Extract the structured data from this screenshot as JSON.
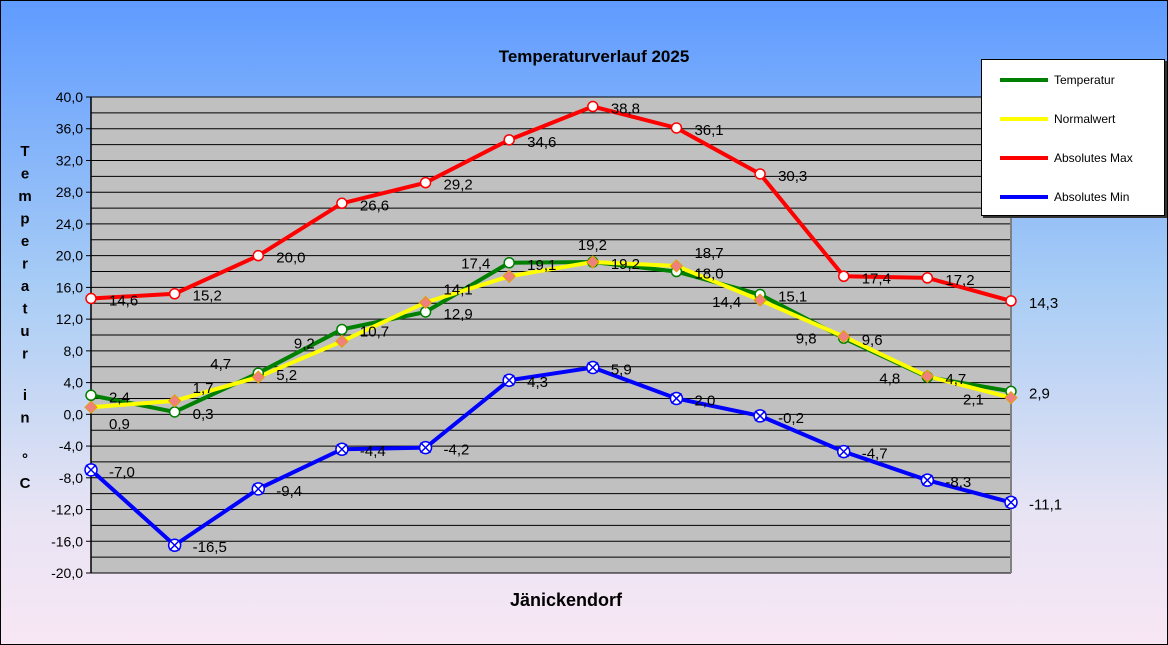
{
  "chart_data": {
    "type": "line",
    "title": "Temperaturverlauf  2025",
    "xlabel": "Jänickendorf",
    "ylabel": "Temperatur in °C",
    "ylim": [
      -20,
      40
    ],
    "yticks": [
      "-20,0",
      "-16,0",
      "-12,0",
      "-8,0",
      "-4,0",
      "0,0",
      "4,0",
      "8,0",
      "12,0",
      "16,0",
      "20,0",
      "24,0",
      "28,0",
      "32,0",
      "36,0",
      "40,0"
    ],
    "grid": true,
    "legend_position": "top-right",
    "series": [
      {
        "name": "Temperatur",
        "color": "#008000",
        "values": [
          2.4,
          0.3,
          5.2,
          10.7,
          12.9,
          19.1,
          19.2,
          18.0,
          15.1,
          9.6,
          4.7,
          2.9
        ]
      },
      {
        "name": "Normalwert",
        "color": "#ffff00",
        "values": [
          0.9,
          1.7,
          4.7,
          9.2,
          14.1,
          17.4,
          19.2,
          18.7,
          14.4,
          9.8,
          4.8,
          2.1
        ]
      },
      {
        "name": "Absolutes Max",
        "color": "#ff0000",
        "values": [
          14.6,
          15.2,
          20.0,
          26.6,
          29.2,
          34.6,
          38.8,
          36.1,
          30.3,
          17.4,
          17.2,
          14.3
        ]
      },
      {
        "name": "Absolutes Min",
        "color": "#0000ff",
        "values": [
          -7.0,
          -16.5,
          -9.4,
          -4.4,
          -4.2,
          4.3,
          5.9,
          2.0,
          -0.2,
          -4.7,
          -8.3,
          -11.1
        ]
      }
    ]
  }
}
